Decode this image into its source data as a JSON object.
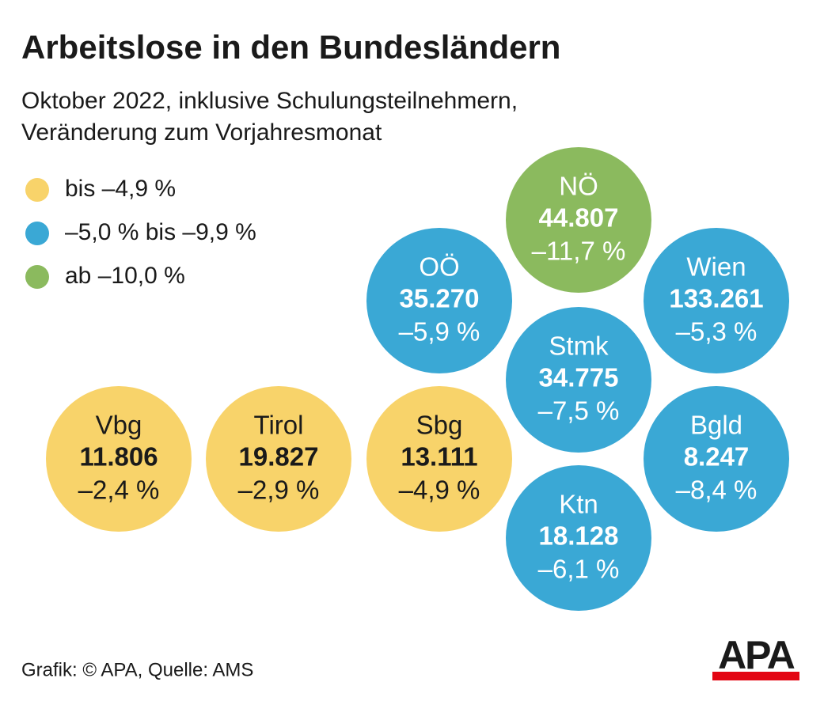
{
  "header": {
    "title": "Arbeitslose in den Bundesländern",
    "subtitle": [
      "Oktober 2022, inklusive Schulungsteilnehmern,",
      "Veränderung zum Vorjahresmonat"
    ]
  },
  "legend": [
    {
      "label": "bis –4,9 %",
      "color": "#f8d36a"
    },
    {
      "label": "–5,0 % bis –9,9 %",
      "color": "#3aa8d5"
    },
    {
      "label": "ab –10,0 %",
      "color": "#8bba5e"
    }
  ],
  "regions": [
    {
      "name": "NÖ",
      "count": "44.807",
      "change": "–11,7 %",
      "class": 2
    },
    {
      "name": "OÖ",
      "count": "35.270",
      "change": "–5,9 %",
      "class": 1
    },
    {
      "name": "Wien",
      "count": "133.261",
      "change": "–5,3 %",
      "class": 1
    },
    {
      "name": "Stmk",
      "count": "34.775",
      "change": "–7,5 %",
      "class": 1
    },
    {
      "name": "Vbg",
      "count": "11.806",
      "change": "–2,4 %",
      "class": 0
    },
    {
      "name": "Tirol",
      "count": "19.827",
      "change": "–2,9 %",
      "class": 0
    },
    {
      "name": "Sbg",
      "count": "13.111",
      "change": "–4,9 %",
      "class": 0
    },
    {
      "name": "Bgld",
      "count": "8.247",
      "change": "–8,4 %",
      "class": 1
    },
    {
      "name": "Ktn",
      "count": "18.128",
      "change": "–6,1 %",
      "class": 1
    }
  ],
  "footer": {
    "source": "Grafik: © APA, Quelle: AMS",
    "logo": "APA"
  }
}
